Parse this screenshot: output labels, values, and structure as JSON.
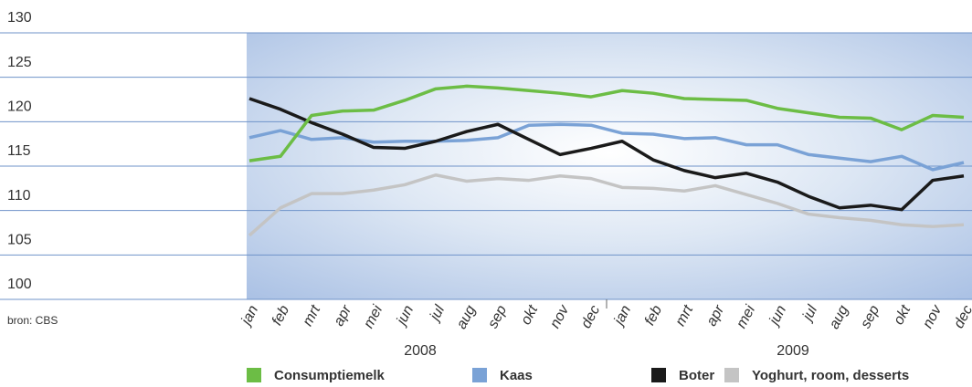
{
  "chart_data": {
    "type": "line",
    "categories": [
      "jan",
      "feb",
      "mrt",
      "apr",
      "mei",
      "jun",
      "jul",
      "aug",
      "sep",
      "okt",
      "nov",
      "dec",
      "jan",
      "feb",
      "mrt",
      "apr",
      "mei",
      "jun",
      "jul",
      "aug",
      "sep",
      "okt",
      "nov",
      "dec"
    ],
    "years": [
      "2008",
      "2009"
    ],
    "source": "bron: CBS",
    "ylim": [
      100,
      130
    ],
    "yticks": [
      100,
      105,
      110,
      115,
      120,
      125,
      130
    ],
    "grid": true,
    "legend": "bottom",
    "series": [
      {
        "name": "Consumptiemelk",
        "color": "#6cbd45",
        "values": [
          115.6,
          116.1,
          120.7,
          121.2,
          121.3,
          122.4,
          123.7,
          124.0,
          123.8,
          123.5,
          123.2,
          122.8,
          123.5,
          123.2,
          122.6,
          122.5,
          122.4,
          121.5,
          121.0,
          120.5,
          120.4,
          119.1,
          120.7,
          120.5
        ]
      },
      {
        "name": "Kaas",
        "color": "#7aa2d6",
        "values": [
          118.2,
          119.0,
          118.0,
          118.2,
          117.7,
          117.8,
          117.8,
          117.9,
          118.2,
          119.6,
          119.7,
          119.6,
          118.7,
          118.6,
          118.1,
          118.2,
          117.4,
          117.4,
          116.3,
          115.9,
          115.5,
          116.1,
          114.6,
          115.4
        ]
      },
      {
        "name": "Boter",
        "color": "#1a1a1a",
        "values": [
          122.6,
          121.4,
          119.9,
          118.6,
          117.1,
          117.0,
          117.8,
          118.9,
          119.7,
          118.0,
          116.3,
          117.0,
          117.8,
          115.7,
          114.5,
          113.7,
          114.2,
          113.2,
          111.6,
          110.3,
          110.6,
          110.1,
          113.4,
          113.9
        ]
      },
      {
        "name": "Yoghurt, room, desserts",
        "color": "#c4c4c4",
        "values": [
          107.2,
          110.3,
          111.9,
          111.9,
          112.3,
          112.9,
          114.0,
          113.3,
          113.6,
          113.4,
          113.9,
          113.6,
          112.6,
          112.5,
          112.2,
          112.8,
          111.8,
          110.8,
          109.6,
          109.2,
          108.9,
          108.4,
          108.2,
          108.4
        ]
      }
    ]
  }
}
